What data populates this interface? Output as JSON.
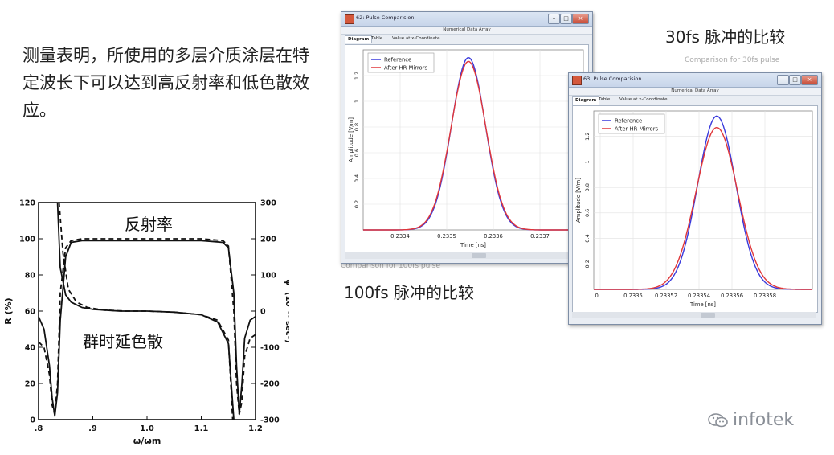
{
  "intro_text": "测量表明，所使用的多层介质涂层在特定波长下可以达到高反射率和低色散效应。",
  "captions": {
    "cap_30fs": "30fs 脉冲的比较",
    "cap_100fs": "100fs 脉冲的比较",
    "faint_top": "Comparison for 30fs pulse",
    "faint_bottom": "Comparison for 100fs pulse"
  },
  "logo": {
    "text": "infotek",
    "icon": "wechat-icon"
  },
  "colors": {
    "reference": "#3a3adc",
    "after": "#e0373a"
  },
  "windows": [
    {
      "id": "win62",
      "title": "62: Pulse Comparision",
      "menu": "Numerical Data Array",
      "tabs": [
        "Diagram",
        "Table",
        "Value at x-Coordinate"
      ],
      "active_tab": "Diagram",
      "legend": [
        "Reference",
        "After HR Mirrors"
      ],
      "ylabel": "Amplitude [V/m]",
      "xlabel": "Time [ns]",
      "yticks": [
        "0.2",
        "0.4",
        "0.6",
        "0.8",
        "1",
        "1.2"
      ],
      "xticks": [
        "0.2334",
        "0.2335",
        "0.2336",
        "0.2337"
      ]
    },
    {
      "id": "win63",
      "title": "63: Pulse Comparision",
      "menu": "Numerical Data Array",
      "tabs": [
        "Diagram",
        "Table",
        "Value at x-Coordinate"
      ],
      "active_tab": "Diagram",
      "legend": [
        "Reference",
        "After HR Mirrors"
      ],
      "ylabel": "Amplitude [V/m]",
      "xlabel": "Time [ns]",
      "yticks": [
        "0.2",
        "0.4",
        "0.6",
        "0.8",
        "1",
        "1.2"
      ],
      "xticks": [
        "0....",
        "0.2335",
        "0.23352",
        "0.23354",
        "0.23356",
        "0.23358"
      ]
    }
  ],
  "chart_data": [
    {
      "type": "line",
      "title": "",
      "xlabel": "Time [ns]",
      "ylabel": "Amplitude [V/m]",
      "xlim": [
        0.23332,
        0.23378
      ],
      "ylim": [
        0,
        1.4
      ],
      "series": [
        {
          "name": "Reference",
          "color": "#3a3adc",
          "peak_x": 0.23354,
          "peak_y": 1.34,
          "sigma": 3.55e-05
        },
        {
          "name": "After HR Mirrors",
          "color": "#e0373a",
          "peak_x": 0.23354,
          "peak_y": 1.31,
          "sigma": 3.65e-05
        }
      ]
    },
    {
      "type": "line",
      "title": "",
      "xlabel": "Time [ns]",
      "ylabel": "Amplitude [V/m]",
      "xlim": [
        0.233465,
        0.2336
      ],
      "ylim": [
        0,
        1.4
      ],
      "series": [
        {
          "name": "Reference",
          "color": "#3a3adc",
          "peak_x": 0.233541,
          "peak_y": 1.36,
          "sigma": 1.18e-05
        },
        {
          "name": "After HR Mirrors",
          "color": "#e0373a",
          "peak_x": 0.233541,
          "peak_y": 1.27,
          "sigma": 1.28e-05
        }
      ]
    },
    {
      "type": "line",
      "title": "",
      "xlabel": "ω/ωm",
      "ylabel_left": "R (%)",
      "ylabel_right": "φ″ (10⁻³⁰ sec²)",
      "xticks": [
        ".8",
        ".9",
        "1.0",
        "1.1",
        "1.2"
      ],
      "yticks_left": [
        "0",
        "20",
        "40",
        "60",
        "80",
        "100",
        "120"
      ],
      "yticks_right": [
        "-300",
        "-200",
        "-100",
        "0",
        "100",
        "200",
        "300"
      ],
      "xlim": [
        0.8,
        1.2
      ],
      "ylim_left": [
        0,
        120
      ],
      "ylim_right": [
        -300,
        300
      ],
      "annotations": [
        "反射率",
        "群时延色散"
      ],
      "series": [
        {
          "name": "",
          "style": "solid",
          "x": [
            0.8,
            0.81,
            0.82,
            0.825,
            0.83,
            0.835,
            0.84,
            0.85,
            0.86,
            0.88,
            0.9,
            0.95,
            1.0,
            1.05,
            1.1,
            1.14,
            1.15,
            1.16,
            1.165,
            1.17,
            1.175,
            1.18,
            1.19,
            1.2
          ],
          "y": [
            57,
            50,
            30,
            12,
            2,
            15,
            55,
            90,
            98,
            99,
            99,
            99,
            99,
            99,
            99,
            98,
            95,
            70,
            30,
            3,
            20,
            45,
            55,
            57
          ]
        },
        {
          "name": "",
          "style": "dashed",
          "x": [
            0.8,
            0.81,
            0.82,
            0.825,
            0.83,
            0.835,
            0.84,
            0.85,
            0.86,
            0.88,
            0.9,
            0.95,
            1.0,
            1.05,
            1.1,
            1.14,
            1.15,
            1.16,
            1.165,
            1.17,
            1.175,
            1.18,
            1.19,
            1.2
          ],
          "y": [
            43,
            40,
            25,
            8,
            3,
            20,
            70,
            95,
            99,
            100,
            100,
            100,
            100,
            100,
            100,
            99,
            96,
            60,
            20,
            3,
            10,
            35,
            45,
            47
          ]
        },
        {
          "name": "",
          "style": "solid-gdd",
          "x": [
            0.835,
            0.84,
            0.85,
            0.86,
            0.88,
            0.9,
            0.95,
            1.0,
            1.05,
            1.1,
            1.13,
            1.15,
            1.16
          ],
          "y": [
            300,
            120,
            45,
            25,
            10,
            5,
            0,
            0,
            -3,
            -10,
            -30,
            -90,
            -300
          ]
        },
        {
          "name": "",
          "style": "dashed-gdd",
          "x": [
            0.838,
            0.845,
            0.855,
            0.87,
            0.89,
            0.92,
            0.96,
            1.0,
            1.05,
            1.1,
            1.13,
            1.15,
            1.158
          ],
          "y": [
            300,
            160,
            60,
            25,
            10,
            3,
            0,
            0,
            -3,
            -10,
            -25,
            -80,
            -300
          ]
        }
      ]
    }
  ]
}
